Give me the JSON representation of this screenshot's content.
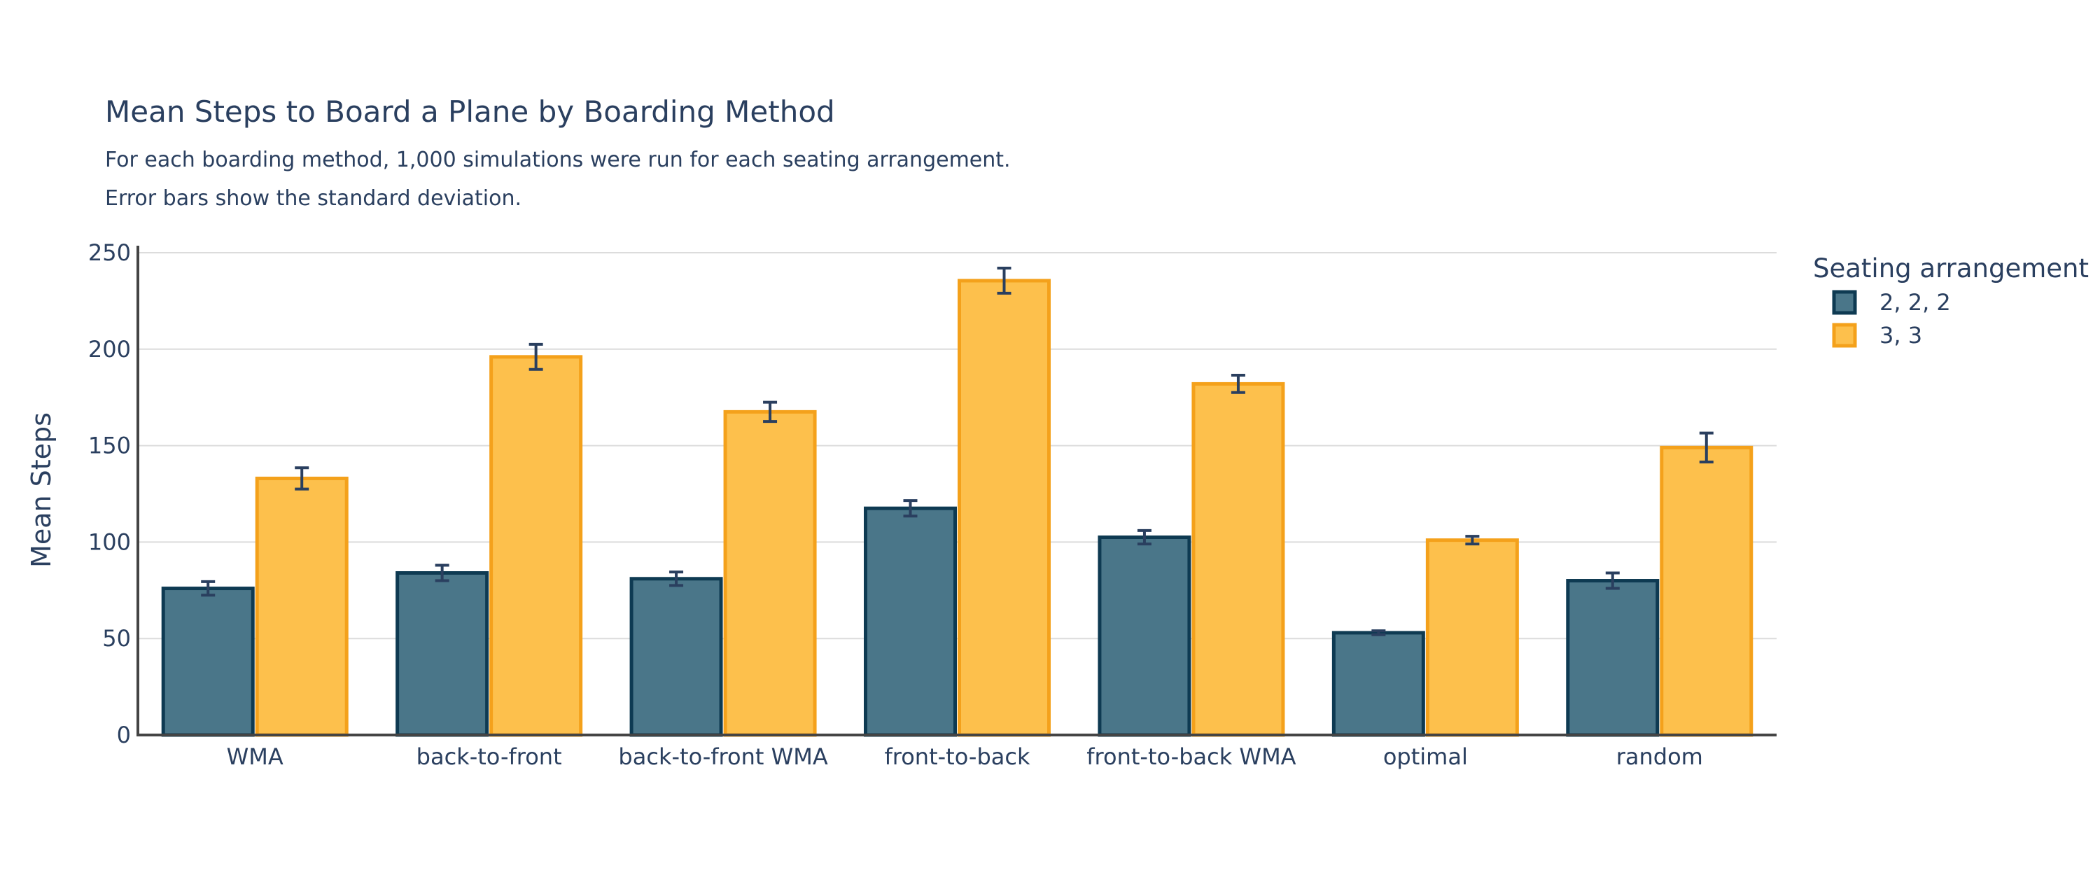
{
  "chart_data": {
    "type": "bar",
    "title": "Mean Steps to Board a Plane by Boarding Method",
    "subtitle_lines": [
      "For each boarding method, 1,000 simulations were run for each seating arrangement.",
      "Error bars show the standard deviation."
    ],
    "xlabel": "",
    "ylabel": "Mean Steps",
    "ylim": [
      0,
      250
    ],
    "yticks": [
      0,
      50,
      100,
      150,
      200,
      250
    ],
    "grid": true,
    "legend": {
      "title": "Seating arrangement",
      "placement": "top-right"
    },
    "categories": [
      "WMA",
      "back-to-front",
      "back-to-front WMA",
      "front-to-back",
      "front-to-back WMA",
      "optimal",
      "random"
    ],
    "series": [
      {
        "name": "2, 2, 2",
        "color": "#0e3a52",
        "fill": "#4a7689",
        "values": [
          76,
          84,
          81,
          117.5,
          102.5,
          53,
          80
        ],
        "error": [
          3.5,
          4,
          3.5,
          4,
          3.5,
          1,
          4
        ]
      },
      {
        "name": "3, 3",
        "color": "#f4a11b",
        "fill": "#fdc04c",
        "values": [
          133,
          196,
          167.5,
          235.5,
          182,
          101,
          149
        ],
        "error": [
          5.5,
          6.5,
          5,
          6.5,
          4.5,
          2,
          7.5
        ]
      }
    ]
  }
}
